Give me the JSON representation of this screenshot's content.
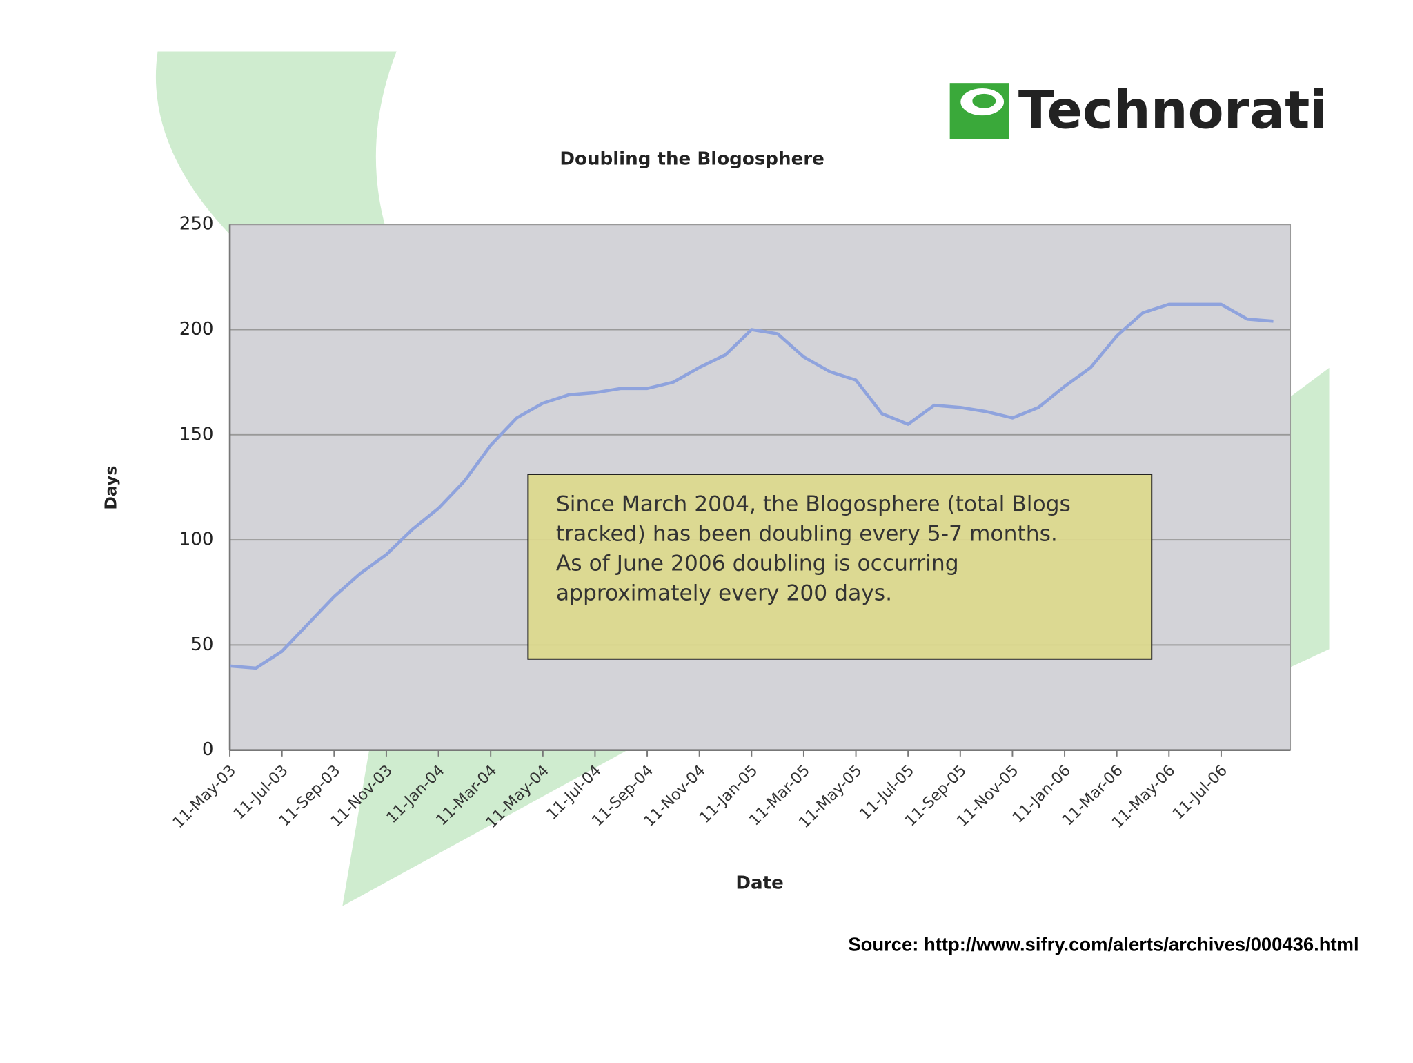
{
  "chart_data": {
    "type": "line",
    "title": "Doubling the Blogosphere",
    "x_label": "Date",
    "y_label": "Days",
    "categories": [
      "11-May-03",
      null,
      "11-Jul-03",
      null,
      "11-Sep-03",
      null,
      "11-Nov-03",
      null,
      "11-Jan-04",
      null,
      "11-Mar-04",
      null,
      "11-May-04",
      null,
      "11-Jul-04",
      null,
      "11-Sep-04",
      null,
      "11-Nov-04",
      null,
      "11-Jan-05",
      null,
      "11-Mar-05",
      null,
      "11-May-05",
      null,
      "11-Jul-05",
      null,
      "11-Sep-05",
      null,
      "11-Nov-05",
      null,
      "11-Jan-06",
      null,
      "11-Mar-06",
      null,
      "11-May-06",
      null,
      "11-Jul-06",
      null,
      null
    ],
    "series": [
      {
        "name": "Days",
        "color": "#8fa3dd",
        "values": [
          40,
          39,
          47,
          60,
          73,
          84,
          93,
          105,
          115,
          128,
          145,
          158,
          165,
          169,
          170,
          172,
          172,
          175,
          182,
          188,
          200,
          198,
          187,
          180,
          176,
          160,
          155,
          164,
          163,
          161,
          158,
          163,
          173,
          182,
          197,
          208,
          212,
          212,
          212,
          205,
          204
        ]
      }
    ],
    "ylim": [
      0,
      250
    ],
    "yticks": [
      0,
      50,
      100,
      150,
      200,
      250
    ],
    "grid": true,
    "annotation": [
      "Since March 2004, the Blogosphere (total Blogs",
      "tracked) has been doubling every 5-7 months.",
      "As of June 2006 doubling is occurring",
      "approximately every 200 days."
    ]
  },
  "logo": "Technorati",
  "source": "Source: http://www.sifry.com/alerts/archives/000436.html"
}
